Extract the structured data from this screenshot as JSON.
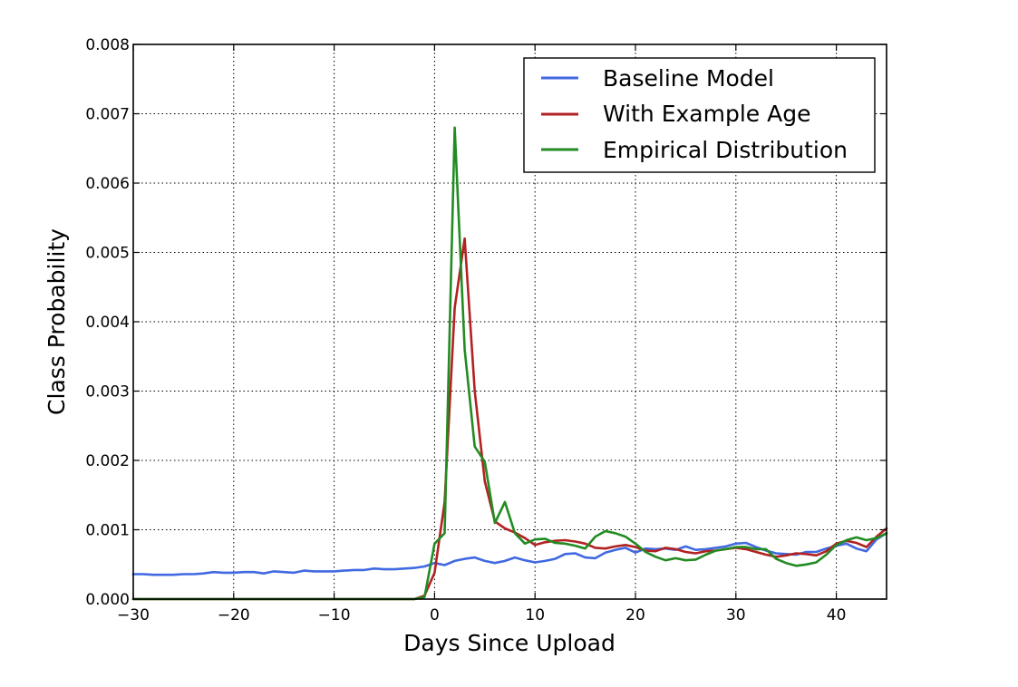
{
  "chart_data": {
    "type": "line",
    "title": "",
    "xlabel": "Days Since Upload",
    "ylabel": "Class Probability",
    "xlim": [
      -30,
      45
    ],
    "ylim": [
      0,
      0.008
    ],
    "grid": true,
    "legend_position": "top-right",
    "x_ticks": [
      -30,
      -20,
      -10,
      0,
      10,
      20,
      30,
      40
    ],
    "x_tick_labels": [
      "−30",
      "−20",
      "−10",
      "0",
      "10",
      "20",
      "30",
      "40"
    ],
    "y_ticks": [
      0,
      0.001,
      0.002,
      0.003,
      0.004,
      0.005,
      0.006,
      0.007,
      0.008
    ],
    "y_tick_labels": [
      "0.000",
      "0.001",
      "0.002",
      "0.003",
      "0.004",
      "0.005",
      "0.006",
      "0.007",
      "0.008"
    ],
    "series": [
      {
        "name": "Baseline Model",
        "color": "#4169e1",
        "points": [
          [
            -30,
            0.00036
          ],
          [
            -29,
            0.00036
          ],
          [
            -28,
            0.00035
          ],
          [
            -27,
            0.00035
          ],
          [
            -26,
            0.00035
          ],
          [
            -25,
            0.00036
          ],
          [
            -24,
            0.00036
          ],
          [
            -23,
            0.00037
          ],
          [
            -22,
            0.00039
          ],
          [
            -21,
            0.00038
          ],
          [
            -20,
            0.00038
          ],
          [
            -19,
            0.00039
          ],
          [
            -18,
            0.00039
          ],
          [
            -17,
            0.00037
          ],
          [
            -16,
            0.0004
          ],
          [
            -15,
            0.00039
          ],
          [
            -14,
            0.00038
          ],
          [
            -13,
            0.00041
          ],
          [
            -12,
            0.0004
          ],
          [
            -11,
            0.0004
          ],
          [
            -10,
            0.0004
          ],
          [
            -9,
            0.00041
          ],
          [
            -8,
            0.00042
          ],
          [
            -7,
            0.00042
          ],
          [
            -6,
            0.00044
          ],
          [
            -5,
            0.00043
          ],
          [
            -4,
            0.00043
          ],
          [
            -3,
            0.00044
          ],
          [
            -2,
            0.00045
          ],
          [
            -1,
            0.00047
          ],
          [
            0,
            0.00052
          ],
          [
            1,
            0.00049
          ],
          [
            2,
            0.00055
          ],
          [
            3,
            0.00058
          ],
          [
            4,
            0.0006
          ],
          [
            5,
            0.00055
          ],
          [
            6,
            0.00052
          ],
          [
            7,
            0.00055
          ],
          [
            8,
            0.0006
          ],
          [
            9,
            0.00056
          ],
          [
            10,
            0.00053
          ],
          [
            11,
            0.00055
          ],
          [
            12,
            0.00058
          ],
          [
            13,
            0.00065
          ],
          [
            14,
            0.00066
          ],
          [
            15,
            0.0006
          ],
          [
            16,
            0.00059
          ],
          [
            17,
            0.00067
          ],
          [
            18,
            0.00071
          ],
          [
            19,
            0.00074
          ],
          [
            20,
            0.00067
          ],
          [
            21,
            0.00073
          ],
          [
            22,
            0.00072
          ],
          [
            23,
            0.00073
          ],
          [
            24,
            0.00071
          ],
          [
            25,
            0.00076
          ],
          [
            26,
            0.00071
          ],
          [
            27,
            0.00072
          ],
          [
            28,
            0.00074
          ],
          [
            29,
            0.00076
          ],
          [
            30,
            0.0008
          ],
          [
            31,
            0.00081
          ],
          [
            32,
            0.00075
          ],
          [
            33,
            0.0007
          ],
          [
            34,
            0.00066
          ],
          [
            35,
            0.00065
          ],
          [
            36,
            0.00064
          ],
          [
            37,
            0.00068
          ],
          [
            38,
            0.00068
          ],
          [
            39,
            0.00073
          ],
          [
            40,
            0.00077
          ],
          [
            41,
            0.0008
          ],
          [
            42,
            0.00073
          ],
          [
            43,
            0.00069
          ],
          [
            44,
            0.00086
          ],
          [
            45,
            0.00095
          ]
        ]
      },
      {
        "name": "With Example Age",
        "color": "#b22222",
        "points": [
          [
            -30,
            0.0
          ],
          [
            -5,
            0.0
          ],
          [
            -2,
            0.0
          ],
          [
            -1,
            5e-05
          ],
          [
            0,
            0.00038
          ],
          [
            1,
            0.0014
          ],
          [
            2,
            0.0042
          ],
          [
            3,
            0.0052
          ],
          [
            4,
            0.003
          ],
          [
            5,
            0.0017
          ],
          [
            6,
            0.00112
          ],
          [
            7,
            0.00102
          ],
          [
            8,
            0.00096
          ],
          [
            9,
            0.00088
          ],
          [
            10,
            0.00078
          ],
          [
            11,
            0.00082
          ],
          [
            12,
            0.00084
          ],
          [
            13,
            0.00085
          ],
          [
            14,
            0.00083
          ],
          [
            15,
            0.0008
          ],
          [
            16,
            0.00074
          ],
          [
            17,
            0.00073
          ],
          [
            18,
            0.00076
          ],
          [
            19,
            0.00078
          ],
          [
            20,
            0.00075
          ],
          [
            21,
            0.0007
          ],
          [
            22,
            0.00069
          ],
          [
            23,
            0.00074
          ],
          [
            24,
            0.00072
          ],
          [
            25,
            0.00068
          ],
          [
            26,
            0.00066
          ],
          [
            27,
            0.00069
          ],
          [
            28,
            0.0007
          ],
          [
            29,
            0.00072
          ],
          [
            30,
            0.00074
          ],
          [
            31,
            0.00072
          ],
          [
            32,
            0.00068
          ],
          [
            33,
            0.00064
          ],
          [
            34,
            0.00061
          ],
          [
            35,
            0.00063
          ],
          [
            36,
            0.00066
          ],
          [
            37,
            0.00065
          ],
          [
            38,
            0.00063
          ],
          [
            39,
            0.00069
          ],
          [
            40,
            0.0008
          ],
          [
            41,
            0.00084
          ],
          [
            42,
            0.00081
          ],
          [
            43,
            0.00075
          ],
          [
            44,
            0.0009
          ],
          [
            45,
            0.00102
          ]
        ]
      },
      {
        "name": "Empirical Distribution",
        "color": "#228b22",
        "points": [
          [
            -30,
            0.0
          ],
          [
            -5,
            0.0
          ],
          [
            -2,
            0.0
          ],
          [
            -1,
            3e-05
          ],
          [
            0,
            0.0008
          ],
          [
            1,
            0.00095
          ],
          [
            2,
            0.0068
          ],
          [
            3,
            0.0036
          ],
          [
            4,
            0.0022
          ],
          [
            5,
            0.00198
          ],
          [
            6,
            0.0011
          ],
          [
            7,
            0.0014
          ],
          [
            8,
            0.00095
          ],
          [
            9,
            0.0008
          ],
          [
            10,
            0.00086
          ],
          [
            11,
            0.00087
          ],
          [
            12,
            0.00081
          ],
          [
            13,
            0.0008
          ],
          [
            14,
            0.00077
          ],
          [
            15,
            0.00073
          ],
          [
            16,
            0.0009
          ],
          [
            17,
            0.00098
          ],
          [
            18,
            0.00095
          ],
          [
            19,
            0.0009
          ],
          [
            20,
            0.0008
          ],
          [
            21,
            0.00068
          ],
          [
            22,
            0.00061
          ],
          [
            23,
            0.00056
          ],
          [
            24,
            0.00059
          ],
          [
            25,
            0.00056
          ],
          [
            26,
            0.00057
          ],
          [
            27,
            0.00064
          ],
          [
            28,
            0.0007
          ],
          [
            29,
            0.00072
          ],
          [
            30,
            0.00075
          ],
          [
            31,
            0.00075
          ],
          [
            32,
            0.00072
          ],
          [
            33,
            0.00072
          ],
          [
            34,
            0.00058
          ],
          [
            35,
            0.00052
          ],
          [
            36,
            0.00048
          ],
          [
            37,
            0.0005
          ],
          [
            38,
            0.00053
          ],
          [
            39,
            0.00064
          ],
          [
            40,
            0.00078
          ],
          [
            41,
            0.00085
          ],
          [
            42,
            0.00089
          ],
          [
            43,
            0.00085
          ],
          [
            44,
            0.00088
          ],
          [
            45,
            0.00095
          ]
        ]
      }
    ]
  }
}
